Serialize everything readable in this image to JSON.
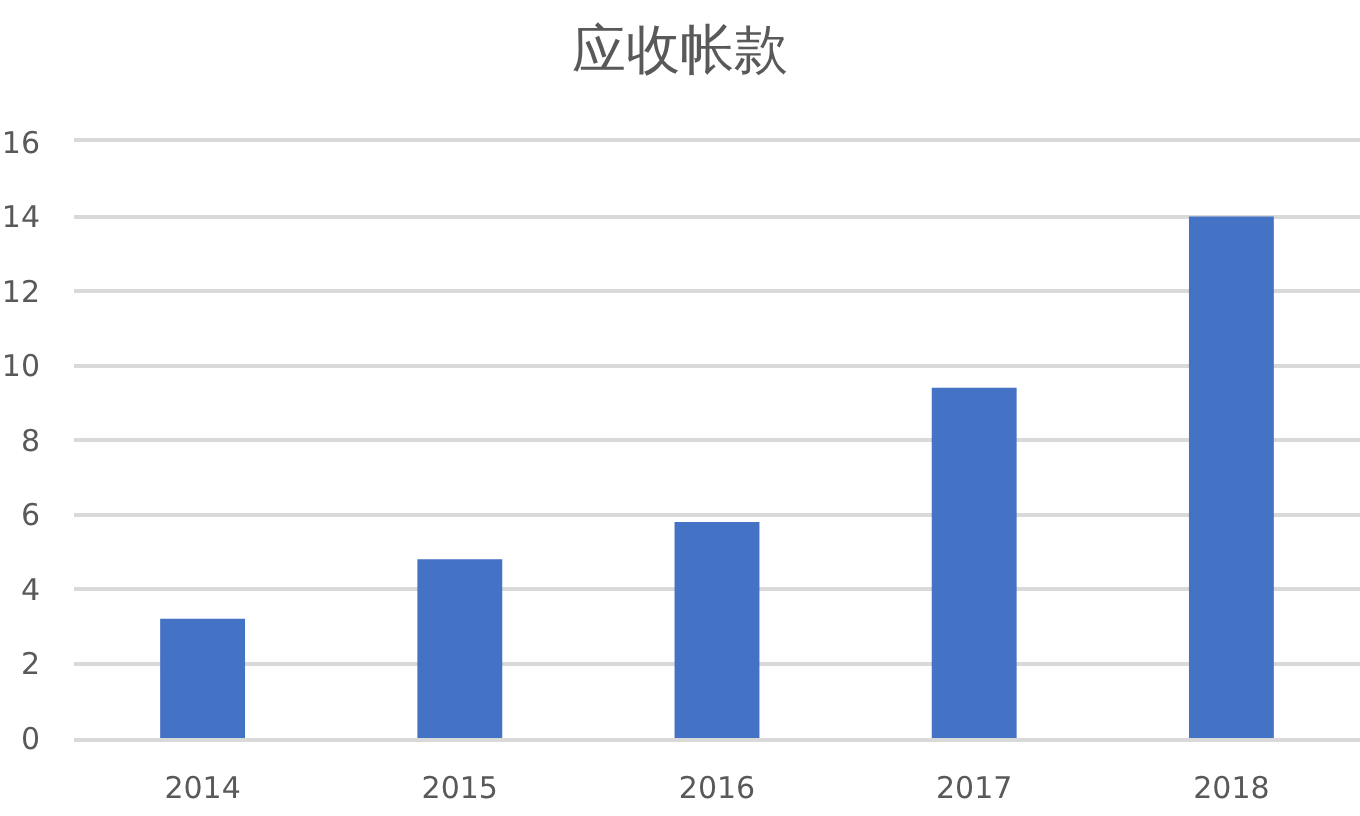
{
  "chart_data": {
    "type": "bar",
    "title": "应收帐款",
    "categories": [
      "2014",
      "2015",
      "2016",
      "2017",
      "2018"
    ],
    "values": [
      3.2,
      4.8,
      5.8,
      9.4,
      14.0
    ],
    "color": "#4472c4",
    "ylim": [
      0,
      16
    ],
    "yticks": [
      0,
      2,
      4,
      6,
      8,
      10,
      12,
      14,
      16
    ],
    "grid": "y"
  }
}
